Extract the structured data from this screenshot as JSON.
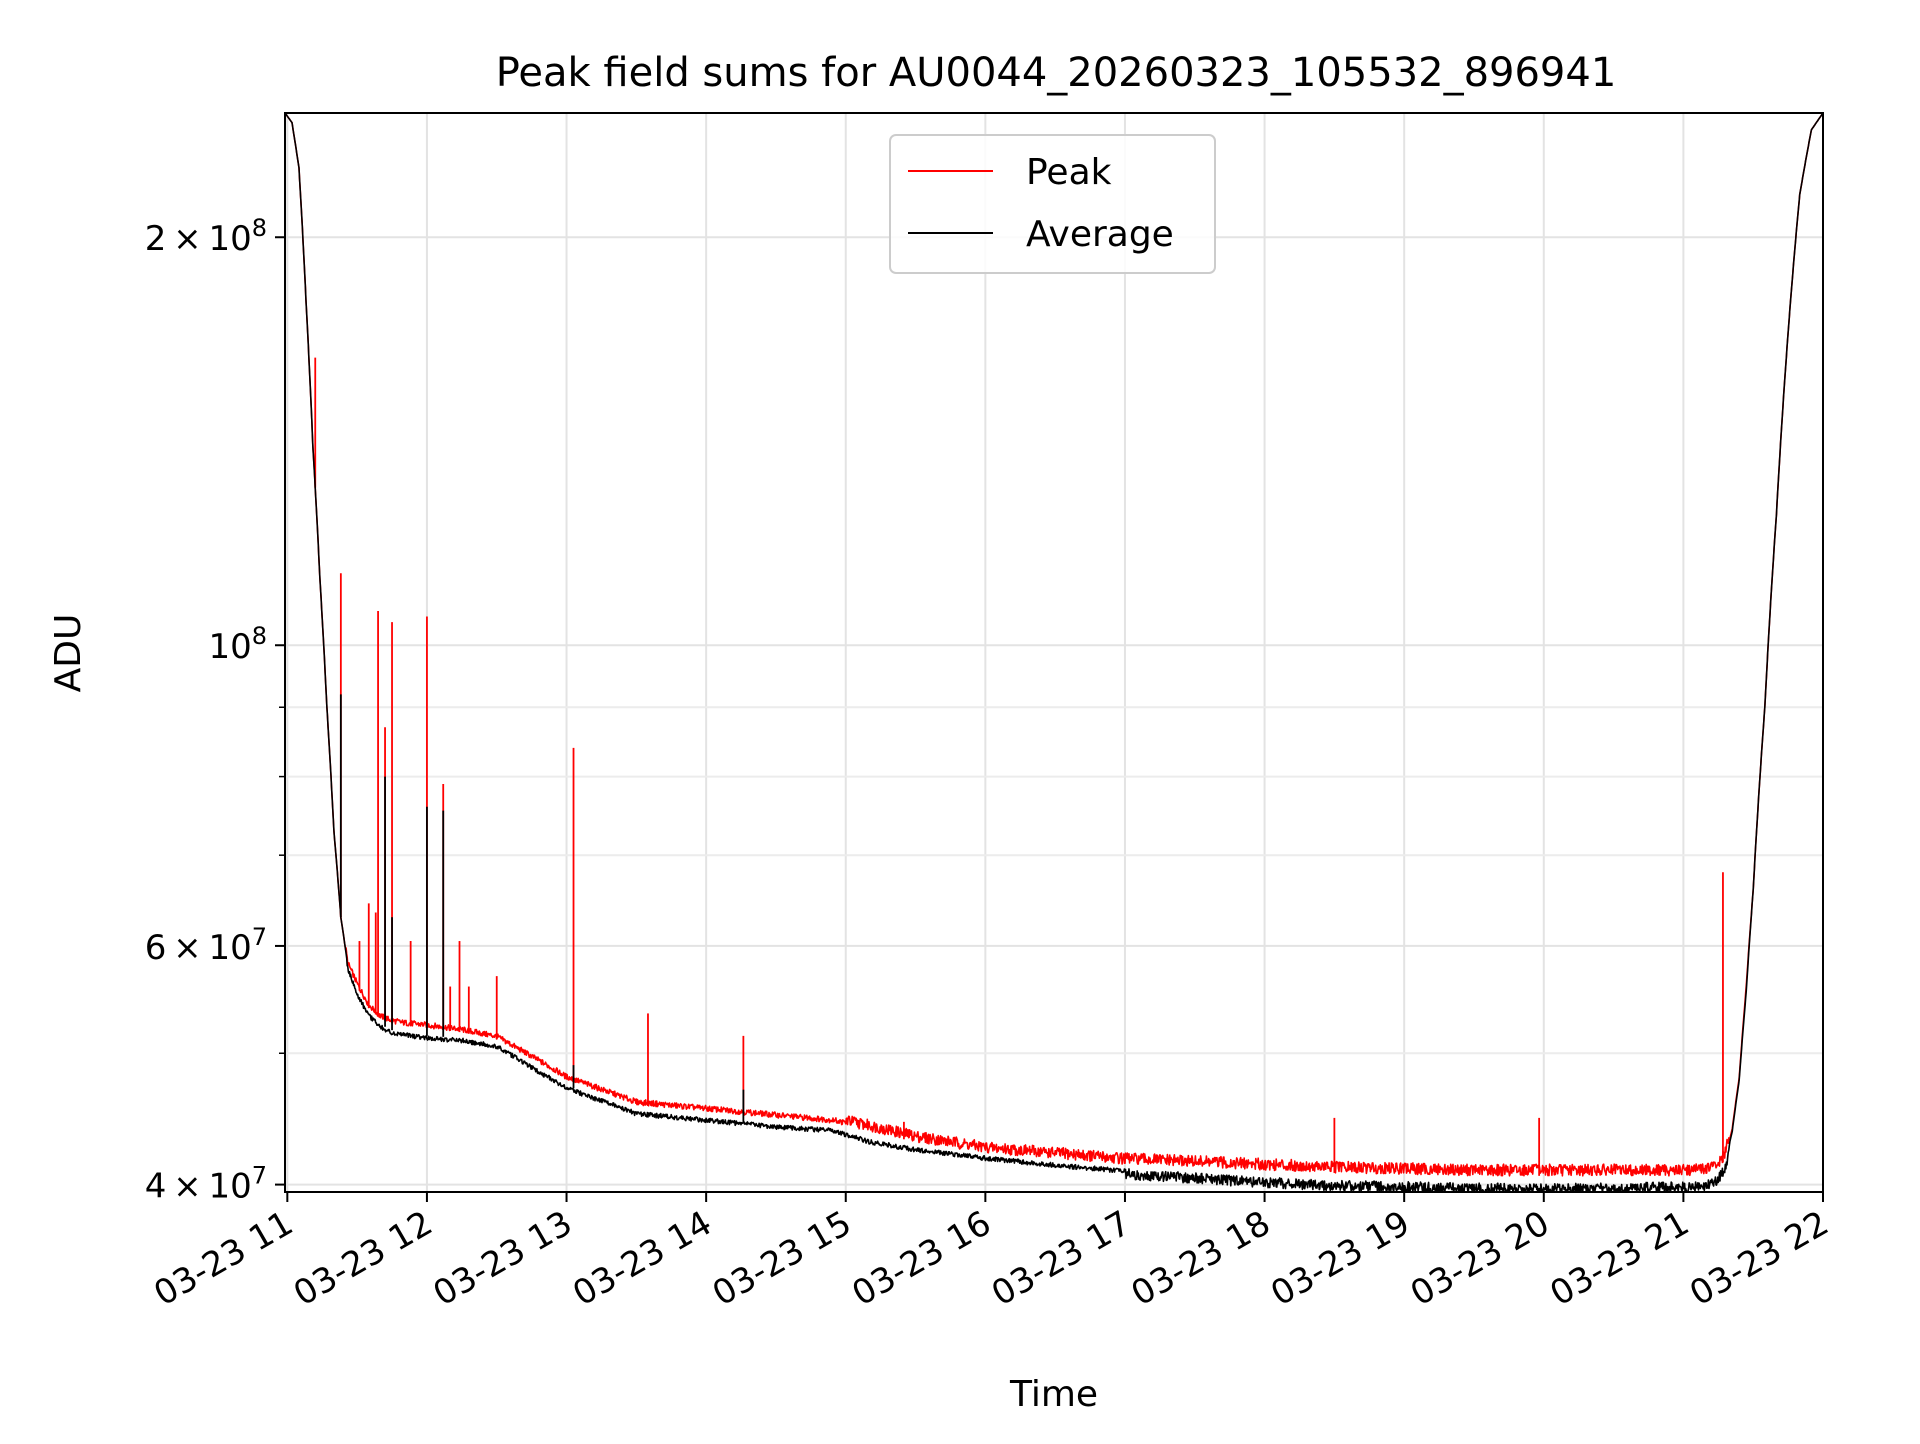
{
  "chart_data": {
    "type": "line",
    "title": "Peak field sums for AU0044_20260323_105532_896941",
    "xlabel": "Time",
    "ylabel": "ADU",
    "y_scale": "log",
    "xlim": [
      "2026-03-23 10:59",
      "2026-03-23 22:00"
    ],
    "ylim": [
      39500000,
      247000000
    ],
    "grid": true,
    "legend_position": "top-center",
    "x_ticks": [
      "03-23 11",
      "03-23 12",
      "03-23 13",
      "03-23 14",
      "03-23 15",
      "03-23 16",
      "03-23 17",
      "03-23 18",
      "03-23 19",
      "03-23 20",
      "03-23 21",
      "03-23 22"
    ],
    "y_ticks": [
      {
        "value": 40000000,
        "base": "4",
        "exp": "7"
      },
      {
        "value": 60000000,
        "base": "6",
        "exp": "7"
      },
      {
        "value": 100000000,
        "base": "",
        "exp": "8"
      },
      {
        "value": 200000000,
        "base": "2",
        "exp": "8"
      }
    ],
    "y_minor_ticks": [
      50000000,
      70000000,
      80000000,
      90000000
    ],
    "series": [
      {
        "name": "Peak",
        "color": "#ff0000",
        "x": [
          "10:59",
          "11:02",
          "11:05",
          "11:08",
          "11:11",
          "11:14",
          "11:17",
          "11:20",
          "11:23",
          "11:26",
          "11:30",
          "11:35",
          "11:40",
          "11:45",
          "11:50",
          "12:00",
          "12:15",
          "12:30",
          "12:45",
          "13:00",
          "13:15",
          "13:30",
          "14:00",
          "14:30",
          "14:55",
          "15:10",
          "15:30",
          "16:00",
          "16:30",
          "17:00",
          "17:30",
          "18:00",
          "18:30",
          "19:00",
          "19:30",
          "20:00",
          "20:30",
          "21:00",
          "21:10",
          "21:15",
          "21:18",
          "21:21",
          "21:24",
          "21:27",
          "21:30",
          "21:35",
          "21:40",
          "21:45",
          "21:50",
          "21:55",
          "22:00"
        ],
        "y": [
          247000000,
          243000000,
          225000000,
          180000000,
          140000000,
          112000000,
          90000000,
          73000000,
          63000000,
          58000000,
          56000000,
          54000000,
          53000000,
          52600000,
          52400000,
          52200000,
          51800000,
          51200000,
          49500000,
          47800000,
          46800000,
          45800000,
          45300000,
          44800000,
          44400000,
          43800000,
          43000000,
          42200000,
          41800000,
          41400000,
          41200000,
          41000000,
          40800000,
          40700000,
          40600000,
          40600000,
          40600000,
          40600000,
          40700000,
          41000000,
          41800000,
          44000000,
          48000000,
          56000000,
          66000000,
          90000000,
          125000000,
          170000000,
          215000000,
          240000000,
          247000000
        ],
        "spikes": [
          {
            "x": "11:12",
            "y": 163000000
          },
          {
            "x": "11:23",
            "y": 113000000
          },
          {
            "x": "11:31",
            "y": 60500000
          },
          {
            "x": "11:35",
            "y": 64500000
          },
          {
            "x": "11:38",
            "y": 63500000
          },
          {
            "x": "11:39",
            "y": 106000000
          },
          {
            "x": "11:42",
            "y": 87000000
          },
          {
            "x": "11:45",
            "y": 104000000
          },
          {
            "x": "11:53",
            "y": 60500000
          },
          {
            "x": "12:00",
            "y": 105000000
          },
          {
            "x": "12:07",
            "y": 79000000
          },
          {
            "x": "12:10",
            "y": 56000000
          },
          {
            "x": "12:14",
            "y": 60500000
          },
          {
            "x": "12:18",
            "y": 56000000
          },
          {
            "x": "12:30",
            "y": 57000000
          },
          {
            "x": "13:03",
            "y": 84000000
          },
          {
            "x": "13:35",
            "y": 53500000
          },
          {
            "x": "14:16",
            "y": 51500000
          },
          {
            "x": "15:25",
            "y": 44500000
          },
          {
            "x": "18:30",
            "y": 44800000
          },
          {
            "x": "19:58",
            "y": 44800000
          },
          {
            "x": "21:17",
            "y": 68000000
          }
        ]
      },
      {
        "name": "Average",
        "color": "#000000",
        "x": [
          "10:59",
          "11:02",
          "11:05",
          "11:08",
          "11:11",
          "11:14",
          "11:17",
          "11:20",
          "11:23",
          "11:26",
          "11:30",
          "11:35",
          "11:40",
          "11:45",
          "11:50",
          "12:00",
          "12:15",
          "12:30",
          "12:45",
          "13:00",
          "13:15",
          "13:30",
          "14:00",
          "14:30",
          "14:55",
          "15:10",
          "15:30",
          "16:00",
          "16:30",
          "17:00",
          "17:30",
          "18:00",
          "18:30",
          "19:00",
          "19:30",
          "20:00",
          "20:30",
          "21:00",
          "21:10",
          "21:15",
          "21:18",
          "21:21",
          "21:24",
          "21:27",
          "21:30",
          "21:35",
          "21:40",
          "21:45",
          "21:50",
          "21:55",
          "22:00"
        ],
        "y": [
          247000000,
          243000000,
          225000000,
          180000000,
          140000000,
          112000000,
          90000000,
          73000000,
          63000000,
          58000000,
          55500000,
          53500000,
          52500000,
          52000000,
          51800000,
          51500000,
          51300000,
          50800000,
          49000000,
          47300000,
          46300000,
          45300000,
          44800000,
          44300000,
          44000000,
          43200000,
          42600000,
          42000000,
          41500000,
          41100000,
          40800000,
          40500000,
          40300000,
          40200000,
          40100000,
          40100000,
          40100000,
          40200000,
          40300000,
          40700000,
          41500000,
          43800000,
          47800000,
          55500000,
          66000000,
          90000000,
          125000000,
          170000000,
          215000000,
          240000000,
          247000000
        ],
        "spikes": [
          {
            "x": "11:23",
            "y": 92000000
          },
          {
            "x": "11:42",
            "y": 80000000
          },
          {
            "x": "11:45",
            "y": 63000000
          },
          {
            "x": "12:00",
            "y": 76000000
          },
          {
            "x": "12:07",
            "y": 75500000
          },
          {
            "x": "13:03",
            "y": 49000000
          },
          {
            "x": "14:16",
            "y": 47000000
          }
        ]
      }
    ]
  }
}
